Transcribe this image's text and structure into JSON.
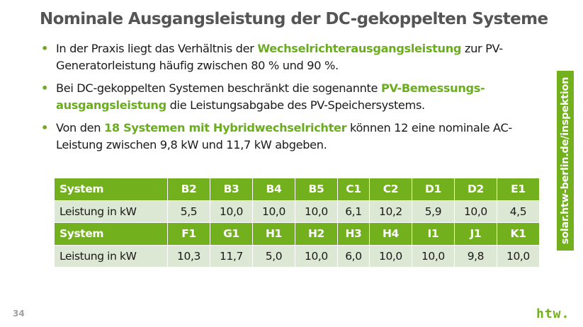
{
  "slide": {
    "title": "Nominale Ausgangsleistung der DC-gekoppelten Systeme",
    "page_number": "34",
    "logo_text": "htw.",
    "sidebar_url": "solar.htw-berlin.de/inspektion",
    "accent_color": "#72b01d"
  },
  "bullets": [
    {
      "before": "In der Praxis liegt das Verhältnis der ",
      "highlight": "Wechselrichterausgangsleistung",
      "after": " zur PV-Generatorleistung häufig zwischen 80 % und 90 %."
    },
    {
      "before": "Bei DC-gekoppelten Systemen beschränkt die sogenannte ",
      "highlight": "PV-Bemessungs-ausgangsleistung",
      "after": " die Leistungsabgabe des PV-Speichersystems."
    },
    {
      "before": "Von den ",
      "highlight": "18 Systemen mit Hybridwechselrichter",
      "after": " können 12 eine nominale AC-Leistung zwischen 9,8 kW und 11,7 kW abgeben."
    }
  ],
  "table": {
    "header_label": "System",
    "value_label": "Leistung in kW",
    "blocks": [
      {
        "systems": [
          "B2",
          "B3",
          "B4",
          "B5",
          "C1",
          "C2",
          "D1",
          "D2",
          "E1"
        ],
        "values": [
          "5,5",
          "10,0",
          "10,0",
          "10,0",
          "6,1",
          "10,2",
          "5,9",
          "10,0",
          "4,5"
        ]
      },
      {
        "systems": [
          "F1",
          "G1",
          "H1",
          "H2",
          "H3",
          "H4",
          "I1",
          "J1",
          "K1"
        ],
        "values": [
          "10,3",
          "11,7",
          "5,0",
          "10,0",
          "6,0",
          "10,0",
          "10,0",
          "9,8",
          "10,0"
        ]
      }
    ]
  }
}
